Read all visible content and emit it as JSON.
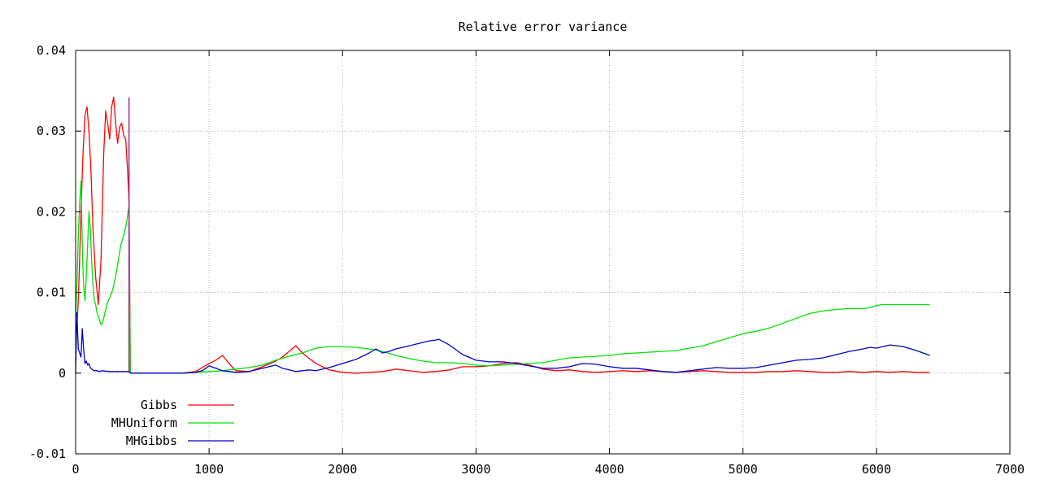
{
  "chart_data": {
    "type": "line",
    "title": "Relative error variance",
    "xlabel": "",
    "ylabel": "",
    "xlim": [
      0,
      7000
    ],
    "ylim": [
      -0.01,
      0.04
    ],
    "xticks": [
      0,
      1000,
      2000,
      3000,
      4000,
      5000,
      6000,
      7000
    ],
    "xtick_labels": [
      "0",
      "1000",
      "2000",
      "3000",
      "4000",
      "5000",
      "6000",
      "7000"
    ],
    "yticks": [
      -0.01,
      0,
      0.01,
      0.02,
      0.03,
      0.04
    ],
    "ytick_labels": [
      "-0.01",
      "0",
      "0.01",
      "0.02",
      "0.03",
      "0.04"
    ],
    "grid": true,
    "legend_position": "bottom-left",
    "series": [
      {
        "name": "Gibbs",
        "color": "#ff0000",
        "x": [
          0,
          10,
          20,
          30,
          40,
          55,
          70,
          85,
          100,
          115,
          130,
          150,
          170,
          190,
          210,
          225,
          240,
          255,
          270,
          285,
          300,
          315,
          330,
          345,
          360,
          375,
          390,
          400,
          410,
          420,
          450,
          600,
          800,
          900,
          1000,
          1050,
          1100,
          1150,
          1200,
          1300,
          1400,
          1500,
          1550,
          1600,
          1650,
          1700,
          1750,
          1800,
          1900,
          2000,
          2100,
          2200,
          2300,
          2400,
          2500,
          2600,
          2700,
          2800,
          2900,
          3000,
          3100,
          3200,
          3300,
          3400,
          3500,
          3600,
          3700,
          3800,
          3900,
          4000,
          4100,
          4200,
          4300,
          4400,
          4500,
          4600,
          4700,
          4800,
          4900,
          5000,
          5100,
          5200,
          5300,
          5400,
          5500,
          5600,
          5700,
          5800,
          5900,
          6000,
          6100,
          6200,
          6300,
          6400
        ],
        "y": [
          0.004,
          0.006,
          0.009,
          0.014,
          0.02,
          0.027,
          0.032,
          0.033,
          0.03,
          0.025,
          0.018,
          0.012,
          0.0085,
          0.014,
          0.027,
          0.0325,
          0.031,
          0.029,
          0.033,
          0.0342,
          0.031,
          0.0285,
          0.0305,
          0.031,
          0.0295,
          0.029,
          0.025,
          0.021,
          0.0,
          0.0,
          0.0,
          0.0,
          0.0,
          0.0002,
          0.0012,
          0.0016,
          0.0022,
          0.0012,
          0.0003,
          0.0002,
          0.0008,
          0.0015,
          0.002,
          0.0027,
          0.0034,
          0.0025,
          0.0018,
          0.0012,
          0.0004,
          0.0001,
          0.0,
          0.0001,
          0.0002,
          0.0005,
          0.0003,
          0.0001,
          0.0002,
          0.0004,
          0.0008,
          0.0008,
          0.0009,
          0.0012,
          0.0013,
          0.001,
          0.0005,
          0.0003,
          0.0004,
          0.0002,
          0.0001,
          0.0002,
          0.0003,
          0.0002,
          0.0003,
          0.0002,
          0.0001,
          0.0002,
          0.0003,
          0.0002,
          0.0001,
          0.0001,
          0.0001,
          0.0002,
          0.0002,
          0.0003,
          0.0002,
          0.0001,
          0.0001,
          0.0002,
          0.0001,
          0.0002,
          0.0001,
          0.0002,
          0.0001,
          0.0001
        ]
      },
      {
        "name": "MHUniform",
        "color": "#00e000",
        "x": [
          0,
          10,
          20,
          30,
          40,
          45,
          50,
          55,
          60,
          70,
          80,
          90,
          100,
          110,
          120,
          130,
          140,
          150,
          160,
          175,
          190,
          200,
          210,
          220,
          240,
          260,
          280,
          300,
          320,
          340,
          360,
          380,
          400,
          410,
          420,
          450,
          600,
          800,
          900,
          1000,
          1100,
          1200,
          1300,
          1400,
          1500,
          1600,
          1700,
          1800,
          1900,
          2000,
          2100,
          2200,
          2300,
          2400,
          2500,
          2600,
          2700,
          2800,
          2900,
          3000,
          3100,
          3200,
          3300,
          3400,
          3500,
          3600,
          3700,
          3800,
          3900,
          4000,
          4100,
          4200,
          4300,
          4400,
          4500,
          4600,
          4700,
          4800,
          4900,
          5000,
          5100,
          5200,
          5300,
          5400,
          5500,
          5600,
          5700,
          5800,
          5900,
          5950,
          6000,
          6050,
          6100,
          6200,
          6300,
          6400
        ],
        "y": [
          0.007,
          0.011,
          0.017,
          0.021,
          0.0238,
          0.02,
          0.016,
          0.013,
          0.011,
          0.009,
          0.012,
          0.016,
          0.02,
          0.018,
          0.014,
          0.011,
          0.009,
          0.0085,
          0.0075,
          0.0068,
          0.006,
          0.0062,
          0.0068,
          0.0075,
          0.0088,
          0.0095,
          0.0105,
          0.012,
          0.014,
          0.016,
          0.017,
          0.0185,
          0.0208,
          0.0,
          0.0,
          0.0,
          0.0,
          0.0,
          0.0001,
          0.0002,
          0.0003,
          0.0005,
          0.0007,
          0.001,
          0.0016,
          0.0021,
          0.0025,
          0.0031,
          0.0033,
          0.0033,
          0.0032,
          0.003,
          0.0027,
          0.0022,
          0.0018,
          0.0015,
          0.0013,
          0.0013,
          0.0012,
          0.001,
          0.0009,
          0.001,
          0.0011,
          0.0012,
          0.0013,
          0.0016,
          0.0019,
          0.002,
          0.0021,
          0.0022,
          0.0024,
          0.0025,
          0.0026,
          0.0027,
          0.0028,
          0.0031,
          0.0034,
          0.0039,
          0.0044,
          0.0049,
          0.0052,
          0.0056,
          0.0062,
          0.0068,
          0.0074,
          0.0077,
          0.0079,
          0.008,
          0.008,
          0.0081,
          0.0084,
          0.0085,
          0.0085,
          0.0085,
          0.0085,
          0.0085
        ]
      },
      {
        "name": "MHGibbs",
        "color": "#0000cc",
        "x": [
          0,
          5,
          10,
          15,
          20,
          30,
          40,
          50,
          60,
          70,
          80,
          90,
          100,
          110,
          120,
          140,
          160,
          180,
          200,
          250,
          300,
          350,
          400,
          420,
          450,
          600,
          800,
          900,
          950,
          1000,
          1050,
          1100,
          1200,
          1300,
          1400,
          1500,
          1550,
          1600,
          1650,
          1700,
          1750,
          1800,
          1900,
          2000,
          2100,
          2200,
          2250,
          2300,
          2350,
          2400,
          2500,
          2600,
          2650,
          2700,
          2720,
          2800,
          2900,
          3000,
          3100,
          3200,
          3300,
          3400,
          3500,
          3600,
          3700,
          3800,
          3900,
          4000,
          4100,
          4200,
          4300,
          4400,
          4500,
          4600,
          4700,
          4800,
          4900,
          5000,
          5100,
          5200,
          5300,
          5400,
          5500,
          5600,
          5700,
          5800,
          5900,
          5950,
          6000,
          6050,
          6100,
          6200,
          6300,
          6400
        ],
        "y": [
          0.0,
          0.004,
          0.0075,
          0.005,
          0.003,
          0.0025,
          0.002,
          0.0055,
          0.003,
          0.0012,
          0.0015,
          0.001,
          0.0012,
          0.0007,
          0.0005,
          0.0003,
          0.0003,
          0.0002,
          0.0003,
          0.0002,
          0.0002,
          0.0002,
          0.0002,
          0.0,
          0.0,
          0.0,
          0.0,
          0.0001,
          0.0003,
          0.0009,
          0.0006,
          0.0003,
          0.0001,
          0.0002,
          0.0006,
          0.001,
          0.0006,
          0.0004,
          0.0002,
          0.0003,
          0.0004,
          0.0003,
          0.0007,
          0.0012,
          0.0017,
          0.0025,
          0.003,
          0.0025,
          0.0027,
          0.003,
          0.0034,
          0.0038,
          0.004,
          0.0041,
          0.0042,
          0.0035,
          0.0023,
          0.0016,
          0.0014,
          0.0014,
          0.0012,
          0.0009,
          0.0006,
          0.0006,
          0.0008,
          0.0012,
          0.0011,
          0.0008,
          0.0006,
          0.0006,
          0.0004,
          0.0002,
          0.0001,
          0.0003,
          0.0005,
          0.0007,
          0.0006,
          0.0006,
          0.0007,
          0.001,
          0.0013,
          0.0016,
          0.0017,
          0.0019,
          0.0023,
          0.0027,
          0.003,
          0.0032,
          0.0031,
          0.0033,
          0.0035,
          0.0033,
          0.0028,
          0.0022
        ]
      }
    ],
    "vertical_marker": {
      "x": 400,
      "y_top": 0.0342,
      "color": "#a0308a"
    }
  }
}
